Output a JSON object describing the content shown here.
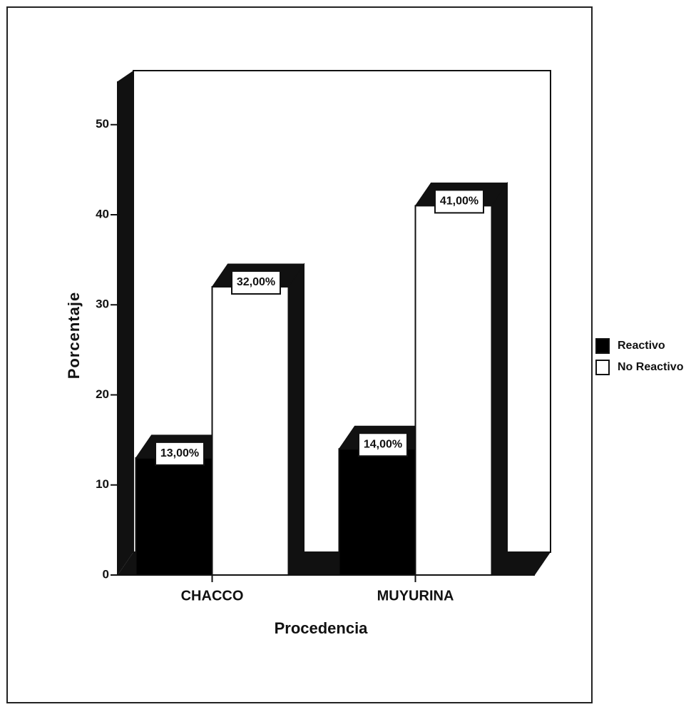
{
  "chart_data": {
    "type": "bar",
    "categories": [
      "CHACCO",
      "MUYURINA"
    ],
    "series": [
      {
        "name": "Reactivo",
        "color": "#000000",
        "values": [
          13,
          14
        ],
        "value_labels": [
          "13,00%",
          "14,00%"
        ]
      },
      {
        "name": "No Reactivo",
        "color": "#ffffff",
        "values": [
          32,
          41
        ],
        "value_labels": [
          "32,00%",
          "41,00%"
        ]
      }
    ],
    "ylabel": "Porcentaje",
    "xlabel": "Procedencia",
    "ylim": [
      0,
      56
    ],
    "yticks": [
      0,
      10,
      20,
      30,
      40,
      50
    ],
    "legend": "right"
  }
}
